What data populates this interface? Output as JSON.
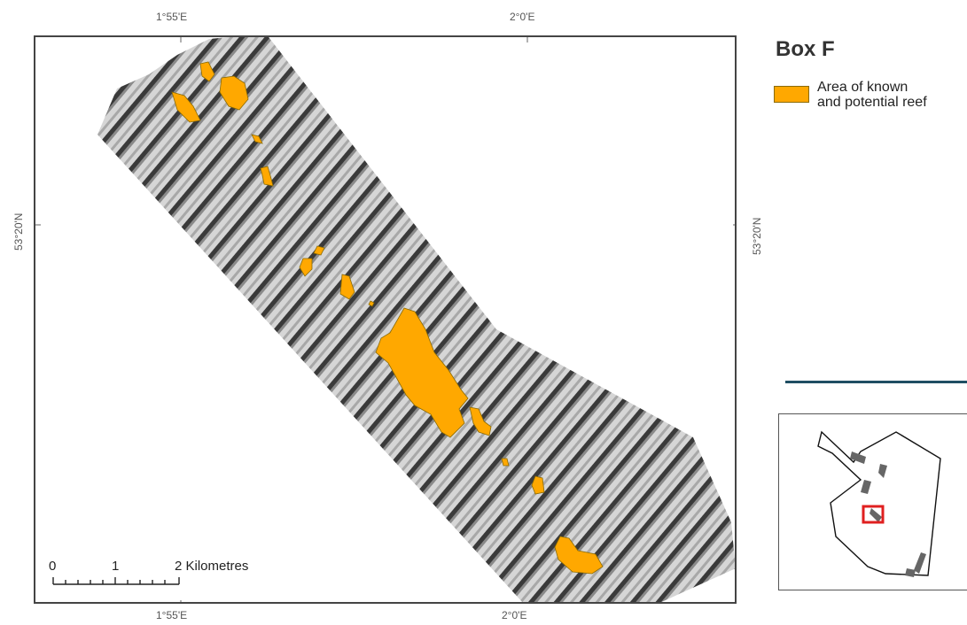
{
  "axes": {
    "top_ticks": [
      "1°55'E",
      "2°0'E"
    ],
    "bottom_ticks": [
      "1°55'E",
      "2°0'E"
    ],
    "left_ticks": [
      "53°20'N"
    ],
    "right_ticks": [
      "53°20'N"
    ]
  },
  "legend": {
    "title": "Box F",
    "items": [
      {
        "label_line1": "Area of known",
        "label_line2": "and potential reef",
        "color": "#ffa800"
      }
    ]
  },
  "scale_bar": {
    "labels": [
      "0",
      "1",
      "2 Kilometres"
    ]
  },
  "colors": {
    "reef": "#ffa800",
    "divider": "#1f4e63",
    "inset_box": "#e02020"
  }
}
